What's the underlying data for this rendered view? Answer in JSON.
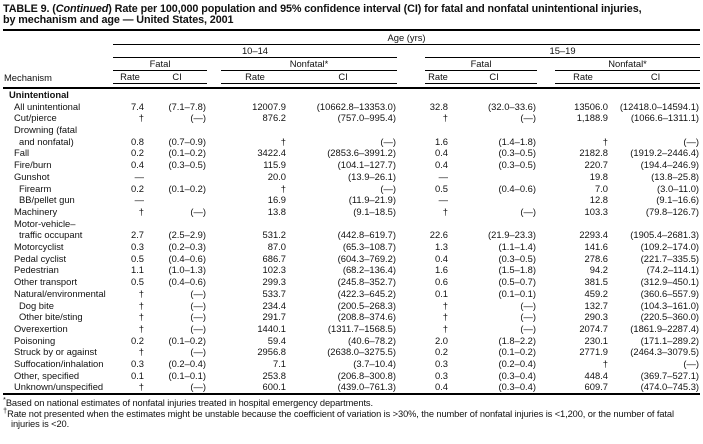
{
  "title": {
    "prefix": "TABLE 9. (",
    "continued": "Continued",
    "suffix1": ") Rate per 100,000 population and 95% confidence interval (CI) for fatal and nonfatal unintentional injuries,",
    "line2": "by mechanism and age — United States, 2001"
  },
  "header": {
    "age_label": "Age (yrs)",
    "col_mechanism": "Mechanism",
    "groups": [
      {
        "label": "10–14"
      },
      {
        "label": "15–19"
      }
    ],
    "fatal_label": "Fatal",
    "nonfatal_label": "Nonfatal*",
    "rate_label": "Rate",
    "ci_label": "CI"
  },
  "rows": [
    {
      "label": "Unintentional",
      "section": true,
      "indent": 0,
      "values": []
    },
    {
      "label": "All unintentional",
      "indent": 1,
      "values": [
        "7.4",
        "(7.1–7.8)",
        "12007.9",
        "(10662.8–13353.0)",
        "32.8",
        "(32.0–33.6)",
        "13506.0",
        "(12418.0–14594.1)"
      ]
    },
    {
      "label": "Cut/pierce",
      "indent": 1,
      "values": [
        "†",
        "(—)",
        "876.2",
        "(757.0–995.4)",
        "†",
        "(—)",
        "1,188.9",
        "(1066.6–1311.1)"
      ]
    },
    {
      "label": "Drowning (fatal",
      "label2": "and nonfatal)",
      "indent": 1,
      "values": [
        "0.8",
        "(0.7–0.9)",
        "†",
        "(—)",
        "1.6",
        "(1.4–1.8)",
        "†",
        "(—)"
      ]
    },
    {
      "label": "Fall",
      "indent": 1,
      "values": [
        "0.2",
        "(0.1–0.2)",
        "3422.4",
        "(2853.6–3991.2)",
        "0.4",
        "(0.3–0.5)",
        "2182.8",
        "(1919.2–2446.4)"
      ]
    },
    {
      "label": "Fire/burn",
      "indent": 1,
      "values": [
        "0.4",
        "(0.3–0.5)",
        "115.9",
        "(104.1–127.7)",
        "0.4",
        "(0.3–0.5)",
        "220.7",
        "(194.4–246.9)"
      ]
    },
    {
      "label": "Gunshot",
      "indent": 1,
      "values": [
        "—",
        "",
        "20.0",
        "(13.9–26.1)",
        "—",
        "",
        "19.8",
        "(13.8–25.8)"
      ]
    },
    {
      "label": "Firearm",
      "indent": 2,
      "values": [
        "0.2",
        "(0.1–0.2)",
        "†",
        "(—)",
        "0.5",
        "(0.4–0.6)",
        "7.0",
        "(3.0–11.0)"
      ]
    },
    {
      "label": "BB/pellet gun",
      "indent": 2,
      "values": [
        "—",
        "",
        "16.9",
        "(11.9–21.9)",
        "—",
        "",
        "12.8",
        "(9.1–16.6)"
      ]
    },
    {
      "label": "Machinery",
      "indent": 1,
      "values": [
        "†",
        "(—)",
        "13.8",
        "(9.1–18.5)",
        "†",
        "(—)",
        "103.3",
        "(79.8–126.7)"
      ]
    },
    {
      "label": "Motor-vehicle–",
      "label2": "traffic occupant",
      "indent": 1,
      "values": [
        "2.7",
        "(2.5–2.9)",
        "531.2",
        "(442.8–619.7)",
        "22.6",
        "(21.9–23.3)",
        "2293.4",
        "(1905.4–2681.3)"
      ]
    },
    {
      "label": "Motorcyclist",
      "indent": 1,
      "values": [
        "0.3",
        "(0.2–0.3)",
        "87.0",
        "(65.3–108.7)",
        "1.3",
        "(1.1–1.4)",
        "141.6",
        "(109.2–174.0)"
      ]
    },
    {
      "label": "Pedal cyclist",
      "indent": 1,
      "values": [
        "0.5",
        "(0.4–0.6)",
        "686.7",
        "(604.3–769.2)",
        "0.4",
        "(0.3–0.5)",
        "278.6",
        "(221.7–335.5)"
      ]
    },
    {
      "label": "Pedestrian",
      "indent": 1,
      "values": [
        "1.1",
        "(1.0–1.3)",
        "102.3",
        "(68.2–136.4)",
        "1.6",
        "(1.5–1.8)",
        "94.2",
        "(74.2–114.1)"
      ]
    },
    {
      "label": "Other transport",
      "indent": 1,
      "values": [
        "0.5",
        "(0.4–0.6)",
        "299.3",
        "(245.8–352.7)",
        "0.6",
        "(0.5–0.7)",
        "381.5",
        "(312.9–450.1)"
      ]
    },
    {
      "label": "Natural/environmental",
      "indent": 1,
      "values": [
        "†",
        "(—)",
        "533.7",
        "(422.3–645.2)",
        "0.1",
        "(0.1–0.1)",
        "459.2",
        "(360.6–557.9)"
      ]
    },
    {
      "label": "Dog bite",
      "indent": 2,
      "values": [
        "†",
        "(—)",
        "234.4",
        "(200.5–268.3)",
        "†",
        "(—)",
        "132.7",
        "(104.3–161.0)"
      ]
    },
    {
      "label": "Other bite/sting",
      "indent": 2,
      "values": [
        "†",
        "(—)",
        "291.7",
        "(208.8–374.6)",
        "†",
        "(—)",
        "290.3",
        "(220.5–360.0)"
      ]
    },
    {
      "label": "Overexertion",
      "indent": 1,
      "values": [
        "†",
        "(—)",
        "1440.1",
        "(1311.7–1568.5)",
        "†",
        "(—)",
        "2074.7",
        "(1861.9–2287.4)"
      ]
    },
    {
      "label": "Poisoning",
      "indent": 1,
      "values": [
        "0.2",
        "(0.1–0.2)",
        "59.4",
        "(40.6–78.2)",
        "2.0",
        "(1.8–2.2)",
        "230.1",
        "(171.1–289.2)"
      ]
    },
    {
      "label": "Struck by or against",
      "indent": 1,
      "values": [
        "†",
        "(—)",
        "2956.8",
        "(2638.0–3275.5)",
        "0.2",
        "(0.1–0.2)",
        "2771.9",
        "(2464.3–3079.5)"
      ]
    },
    {
      "label": "Suffocation/inhalation",
      "indent": 1,
      "values": [
        "0.3",
        "(0.2–0.4)",
        "7.1",
        "(3.7–10.4)",
        "0.3",
        "(0.2–0.4)",
        "†",
        "(—)"
      ]
    },
    {
      "label": "Other, specified",
      "indent": 1,
      "values": [
        "0.1",
        "(0.1–0.1)",
        "253.8",
        "(206.8–300.8)",
        "0.3",
        "(0.3–0.4)",
        "448.4",
        "(369.7–527.1)"
      ]
    },
    {
      "label": "Unknown/unspecified",
      "indent": 1,
      "values": [
        "†",
        "(—)",
        "600.1",
        "(439.0–761.3)",
        "0.4",
        "(0.3–0.4)",
        "609.7",
        "(474.0–745.3)"
      ]
    }
  ],
  "footnotes": [
    {
      "marker": "*",
      "text": "Based on national estimates of nonfatal injuries treated in hospital emergency departments."
    },
    {
      "marker": "†",
      "text": "Rate not presented when the estimates might be unstable because the coefficient of variation is >30%, the number of nonfatal injuries is <1,200, or the number of fatal injuries is <20."
    }
  ]
}
